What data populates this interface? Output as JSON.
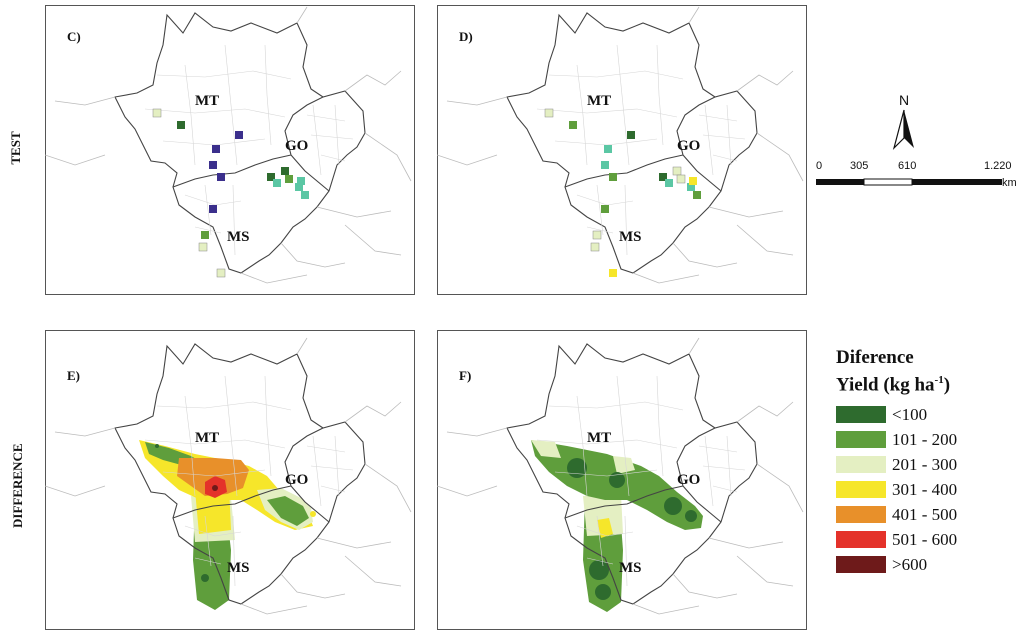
{
  "row_labels": {
    "test": "TEST",
    "difference": "DIFFERENCE"
  },
  "panels": {
    "c": {
      "letter": "C)"
    },
    "d": {
      "letter": "D)"
    },
    "e": {
      "letter": "E)"
    },
    "f": {
      "letter": "F)"
    }
  },
  "states": {
    "mt": "MT",
    "go": "GO",
    "ms": "MS"
  },
  "north_arrow": {
    "letter": "N"
  },
  "scale_bar": {
    "ticks": [
      "0",
      "305",
      "610",
      "1.220"
    ],
    "unit": "km"
  },
  "legend": {
    "title_line1": "Diference",
    "title_line2_pre": "Yield (kg ha",
    "title_sup": "-1",
    "title_line2_post": ")",
    "items": [
      {
        "label": "<100",
        "color": "#2e6b2e"
      },
      {
        "label": "101 - 200",
        "color": "#5f9e3c"
      },
      {
        "label": "201 - 300",
        "color": "#e4efc2"
      },
      {
        "label": "301 - 400",
        "color": "#f6e62a"
      },
      {
        "label": "401 - 500",
        "color": "#e8902a"
      },
      {
        "label": "501 - 600",
        "color": "#e4322a"
      },
      {
        "label": ">600",
        "color": "#6e1a1a"
      }
    ]
  },
  "point_colors": {
    "purple": "#3b2f8c",
    "teal": "#5bc7a4"
  }
}
